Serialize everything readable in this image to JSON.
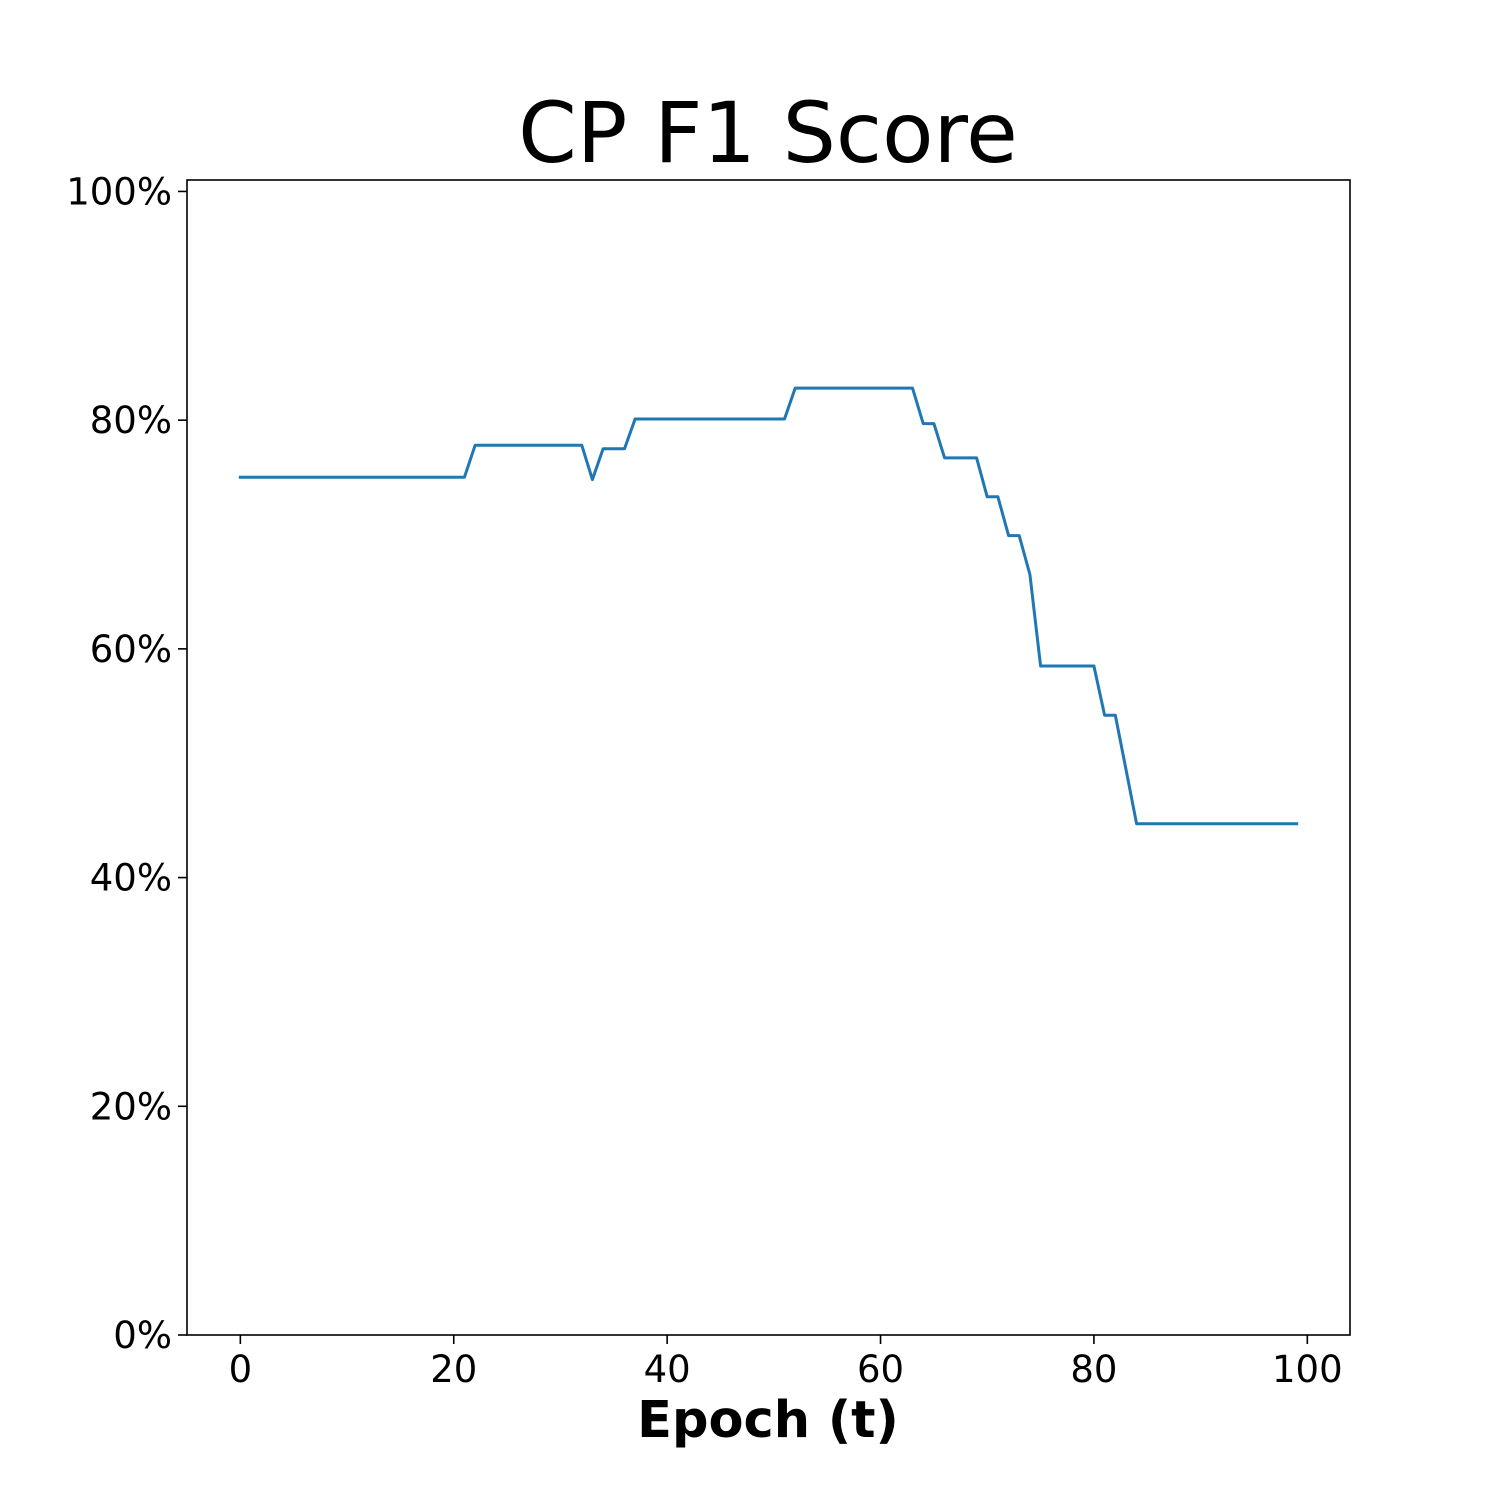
{
  "chart_data": {
    "type": "line",
    "title": "CP F1 Score",
    "xlabel": "Epoch (t)",
    "ylabel": "",
    "xlim": [
      -5,
      104
    ],
    "ylim": [
      0,
      1.01
    ],
    "x_ticks": [
      0,
      20,
      40,
      60,
      80,
      100
    ],
    "x_tick_labels": [
      "0",
      "20",
      "40",
      "60",
      "80",
      "100"
    ],
    "y_ticks": [
      0,
      0.2,
      0.4,
      0.6,
      0.8,
      1.0
    ],
    "y_tick_labels": [
      "0%",
      "20%",
      "40%",
      "60%",
      "80%",
      "100%"
    ],
    "grid": false,
    "series": [
      {
        "color": "#1f77b4",
        "points": [
          [
            0,
            0.75
          ],
          [
            21,
            0.75
          ],
          [
            22,
            0.778
          ],
          [
            32,
            0.778
          ],
          [
            33,
            0.748
          ],
          [
            34,
            0.775
          ],
          [
            36,
            0.775
          ],
          [
            37,
            0.801
          ],
          [
            51,
            0.801
          ],
          [
            52,
            0.828
          ],
          [
            63,
            0.828
          ],
          [
            64,
            0.797
          ],
          [
            65,
            0.797
          ],
          [
            66,
            0.767
          ],
          [
            69,
            0.767
          ],
          [
            70,
            0.733
          ],
          [
            71,
            0.733
          ],
          [
            72,
            0.699
          ],
          [
            73,
            0.699
          ],
          [
            74,
            0.665
          ],
          [
            75,
            0.585
          ],
          [
            80,
            0.585
          ],
          [
            81,
            0.542
          ],
          [
            82,
            0.542
          ],
          [
            83,
            0.495
          ],
          [
            84,
            0.447
          ],
          [
            99,
            0.447
          ]
        ]
      }
    ]
  }
}
